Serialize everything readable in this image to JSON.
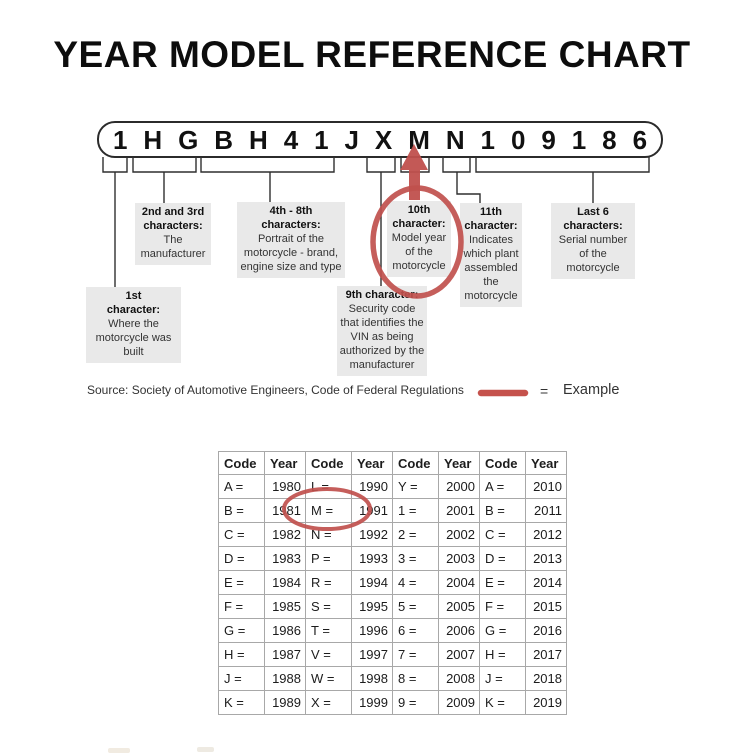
{
  "title": "YEAR MODEL REFERENCE CHART",
  "vin": {
    "characters": [
      "1",
      "H",
      "G",
      "B",
      "H",
      "4",
      "1",
      "J",
      "X",
      "M",
      "N",
      "1",
      "0",
      "9",
      "1",
      "8",
      "6"
    ]
  },
  "callouts": [
    {
      "header": "1st character:",
      "body": "Where the motorcycle was built"
    },
    {
      "header": "2nd and 3rd characters:",
      "body": "The manufacturer"
    },
    {
      "header": "4th - 8th characters:",
      "body": "Portrait of the motorcycle - brand, engine size and type"
    },
    {
      "header": "9th character:",
      "body": "Security code that identifies the VIN as being authorized by the manufacturer"
    },
    {
      "header": "10th character:",
      "body": "Model year of the motorcycle"
    },
    {
      "header": "11th character:",
      "body": "Indicates which plant assembled the motorcycle"
    },
    {
      "header": "Last 6 characters:",
      "body": "Serial number of the motorcycle"
    }
  ],
  "source_line": "Source:  Society of Automotive Engineers, Code of Federal Regulations",
  "legend": {
    "equals": "=",
    "label": "Example"
  },
  "year_table": {
    "headers": [
      "Code",
      "Year",
      "Code",
      "Year",
      "Code",
      "Year",
      "Code",
      "Year"
    ],
    "rows": [
      [
        "A =",
        "1980",
        "L =",
        "1990",
        "Y =",
        "2000",
        "A =",
        "2010"
      ],
      [
        "B =",
        "1981",
        "M =",
        "1991",
        "1 =",
        "2001",
        "B =",
        "2011"
      ],
      [
        "C =",
        "1982",
        "N =",
        "1992",
        "2 =",
        "2002",
        "C =",
        "2012"
      ],
      [
        "D =",
        "1983",
        "P =",
        "1993",
        "3 =",
        "2003",
        "D =",
        "2013"
      ],
      [
        "E =",
        "1984",
        "R =",
        "1994",
        "4 =",
        "2004",
        "E =",
        "2014"
      ],
      [
        "F =",
        "1985",
        "S =",
        "1995",
        "5 =",
        "2005",
        "F =",
        "2015"
      ],
      [
        "G =",
        "1986",
        "T =",
        "1996",
        "6 =",
        "2006",
        "G =",
        "2016"
      ],
      [
        "H =",
        "1987",
        "V =",
        "1997",
        "7 =",
        "2007",
        "H =",
        "2017"
      ],
      [
        "J =",
        "1988",
        "W =",
        "1998",
        "8 =",
        "2008",
        "J =",
        "2018"
      ],
      [
        "K =",
        "1989",
        "X =",
        "1999",
        "9 =",
        "2009",
        "K =",
        "2019"
      ]
    ],
    "highlighted_example": "M = 1991"
  },
  "colors": {
    "accent_red": "#c0504d",
    "callout_bg": "#e9e9e9",
    "table_border": "#a8a8a8",
    "line_color": "#2f2f2f"
  }
}
